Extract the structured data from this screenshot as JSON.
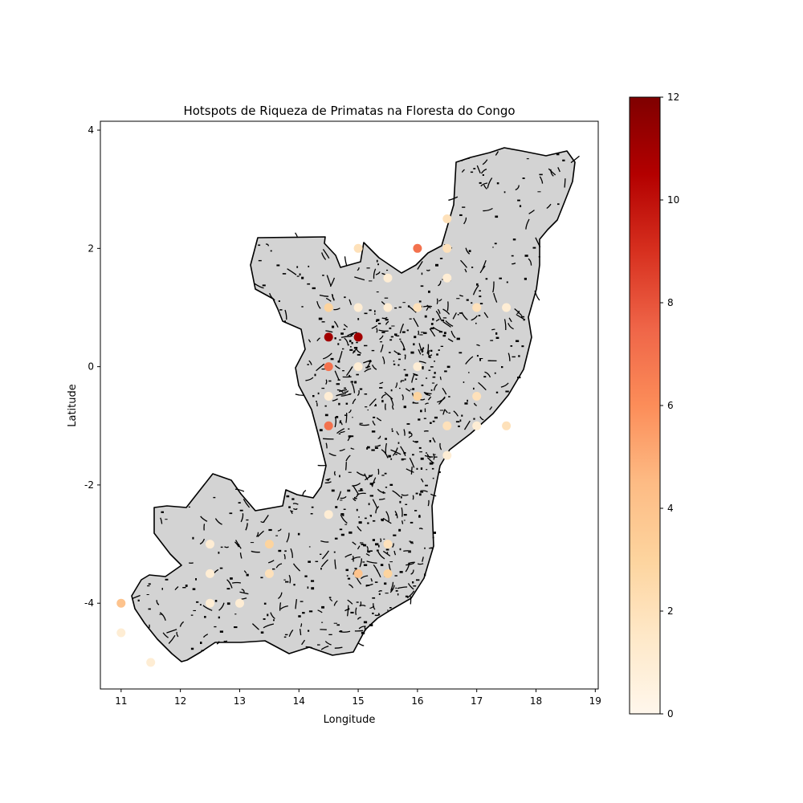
{
  "chart_data": {
    "type": "scatter",
    "title": "Hotspots de Riqueza de Primatas na Floresta do Congo",
    "xlabel": "Longitude",
    "ylabel": "Latitude",
    "xlim": [
      10.65,
      19.05
    ],
    "ylim": [
      -5.45,
      4.15
    ],
    "xticks": [
      11,
      12,
      13,
      14,
      15,
      16,
      17,
      18,
      19
    ],
    "yticks": [
      4,
      2,
      0,
      -2,
      -4
    ],
    "grid": false,
    "basemap": "Republic of the Congo outline with river network, light grey fill",
    "basemap_color": "#d3d3d3",
    "colormap": "OrRd",
    "colorbar": {
      "min": 0,
      "max": 12,
      "ticks": [
        0,
        2,
        4,
        6,
        8,
        10,
        12
      ]
    },
    "points": [
      {
        "x": 16.5,
        "y": 2.5,
        "value": 2
      },
      {
        "x": 15.0,
        "y": 2.0,
        "value": 2
      },
      {
        "x": 16.0,
        "y": 2.0,
        "value": 7
      },
      {
        "x": 16.5,
        "y": 2.0,
        "value": 2
      },
      {
        "x": 15.5,
        "y": 1.5,
        "value": 1
      },
      {
        "x": 16.5,
        "y": 1.5,
        "value": 1
      },
      {
        "x": 14.5,
        "y": 1.0,
        "value": 3
      },
      {
        "x": 15.0,
        "y": 1.0,
        "value": 1
      },
      {
        "x": 15.5,
        "y": 1.0,
        "value": 1
      },
      {
        "x": 16.0,
        "y": 1.0,
        "value": 2
      },
      {
        "x": 17.0,
        "y": 1.0,
        "value": 2
      },
      {
        "x": 17.5,
        "y": 1.0,
        "value": 1
      },
      {
        "x": 14.5,
        "y": 0.5,
        "value": 11
      },
      {
        "x": 15.0,
        "y": 0.5,
        "value": 11
      },
      {
        "x": 14.5,
        "y": 0.0,
        "value": 7
      },
      {
        "x": 15.0,
        "y": 0.0,
        "value": 1
      },
      {
        "x": 16.0,
        "y": 0.0,
        "value": 1
      },
      {
        "x": 14.5,
        "y": -0.5,
        "value": 1
      },
      {
        "x": 16.0,
        "y": -0.5,
        "value": 3
      },
      {
        "x": 17.0,
        "y": -0.5,
        "value": 2
      },
      {
        "x": 14.5,
        "y": -1.0,
        "value": 7
      },
      {
        "x": 16.5,
        "y": -1.0,
        "value": 2
      },
      {
        "x": 17.0,
        "y": -1.0,
        "value": 1
      },
      {
        "x": 17.5,
        "y": -1.0,
        "value": 2
      },
      {
        "x": 16.5,
        "y": -1.5,
        "value": 1
      },
      {
        "x": 14.5,
        "y": -2.5,
        "value": 1
      },
      {
        "x": 12.5,
        "y": -3.0,
        "value": 1
      },
      {
        "x": 13.5,
        "y": -3.0,
        "value": 3
      },
      {
        "x": 15.5,
        "y": -3.0,
        "value": 2
      },
      {
        "x": 12.5,
        "y": -3.5,
        "value": 1
      },
      {
        "x": 13.5,
        "y": -3.5,
        "value": 2
      },
      {
        "x": 15.0,
        "y": -3.5,
        "value": 4
      },
      {
        "x": 15.5,
        "y": -3.5,
        "value": 3
      },
      {
        "x": 11.0,
        "y": -4.0,
        "value": 4
      },
      {
        "x": 12.5,
        "y": -4.0,
        "value": 1
      },
      {
        "x": 13.0,
        "y": -4.0,
        "value": 1
      },
      {
        "x": 11.0,
        "y": -4.5,
        "value": 1
      },
      {
        "x": 11.5,
        "y": -5.0,
        "value": 1
      }
    ]
  }
}
